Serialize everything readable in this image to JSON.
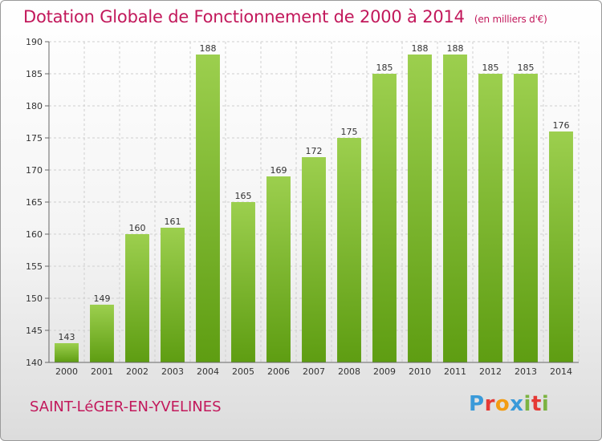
{
  "header": {
    "title": "Dotation Globale de Fonctionnement de 2000 à 2014",
    "unit": "(en milliers d'€)"
  },
  "footer": {
    "commune": "SAINT-LéGER-EN-YVELINES",
    "logo": {
      "letters": [
        "P",
        "r",
        "o",
        "x",
        "i",
        "t",
        "i"
      ],
      "colors": [
        "#3a9ad9",
        "#e53935",
        "#f39c12",
        "#3a9ad9",
        "#7cb342",
        "#e53935",
        "#7cb342"
      ]
    }
  },
  "colors": {
    "bar_top": "#9ccf4e",
    "bar_bottom": "#5e9d12",
    "grid": "#cfcfcf",
    "axis": "#666666"
  },
  "chart_data": {
    "type": "bar",
    "categories": [
      "2000",
      "2001",
      "2002",
      "2003",
      "2004",
      "2005",
      "2006",
      "2007",
      "2008",
      "2009",
      "2010",
      "2011",
      "2012",
      "2013",
      "2014"
    ],
    "values": [
      143,
      149,
      160,
      161,
      188,
      165,
      169,
      172,
      175,
      185,
      188,
      188,
      185,
      185,
      176
    ],
    "ylim": [
      140,
      190
    ],
    "yticks": [
      140,
      145,
      150,
      155,
      160,
      165,
      170,
      175,
      180,
      185,
      190
    ],
    "grid": true
  }
}
